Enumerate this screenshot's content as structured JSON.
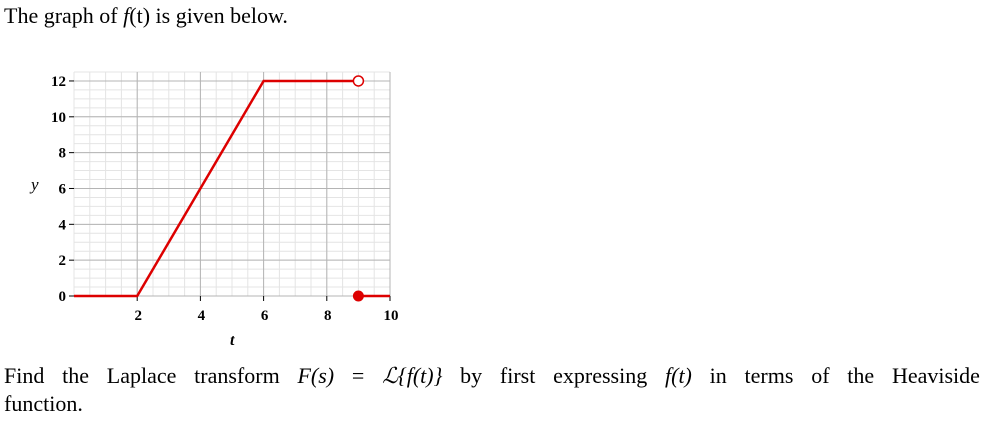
{
  "intro": {
    "before": "The graph of ",
    "fn": "f",
    "arg": "(t)",
    "after": " is given below."
  },
  "question": {
    "w1": "Find",
    "w2": "the",
    "w3": "Laplace",
    "w4": "transform",
    "F": "F(s)",
    "eq": "=",
    "L": "ℒ{f(t)}",
    "w5": "by",
    "w6": "first",
    "w7": "expressing",
    "ft": "f(t)",
    "w8": "in",
    "w9": "terms",
    "w10": "of",
    "w11": "the",
    "w12": "Heaviside",
    "line2": "function."
  },
  "chart_data": {
    "type": "line",
    "xlabel": "t",
    "ylabel": "y",
    "xlim": [
      0,
      10
    ],
    "ylim": [
      0,
      12.5
    ],
    "x_ticks": [
      "2",
      "4",
      "6",
      "8",
      "10"
    ],
    "y_ticks": [
      "0",
      "2",
      "4",
      "6",
      "8",
      "10",
      "12"
    ],
    "grid": true,
    "color": "#dd0000",
    "segments": [
      {
        "points": [
          [
            0,
            0
          ],
          [
            2,
            0
          ],
          [
            6,
            12
          ],
          [
            9,
            12
          ]
        ],
        "end": "open"
      },
      {
        "points": [
          [
            9,
            0
          ],
          [
            10,
            0
          ]
        ],
        "start": "closed"
      }
    ]
  }
}
